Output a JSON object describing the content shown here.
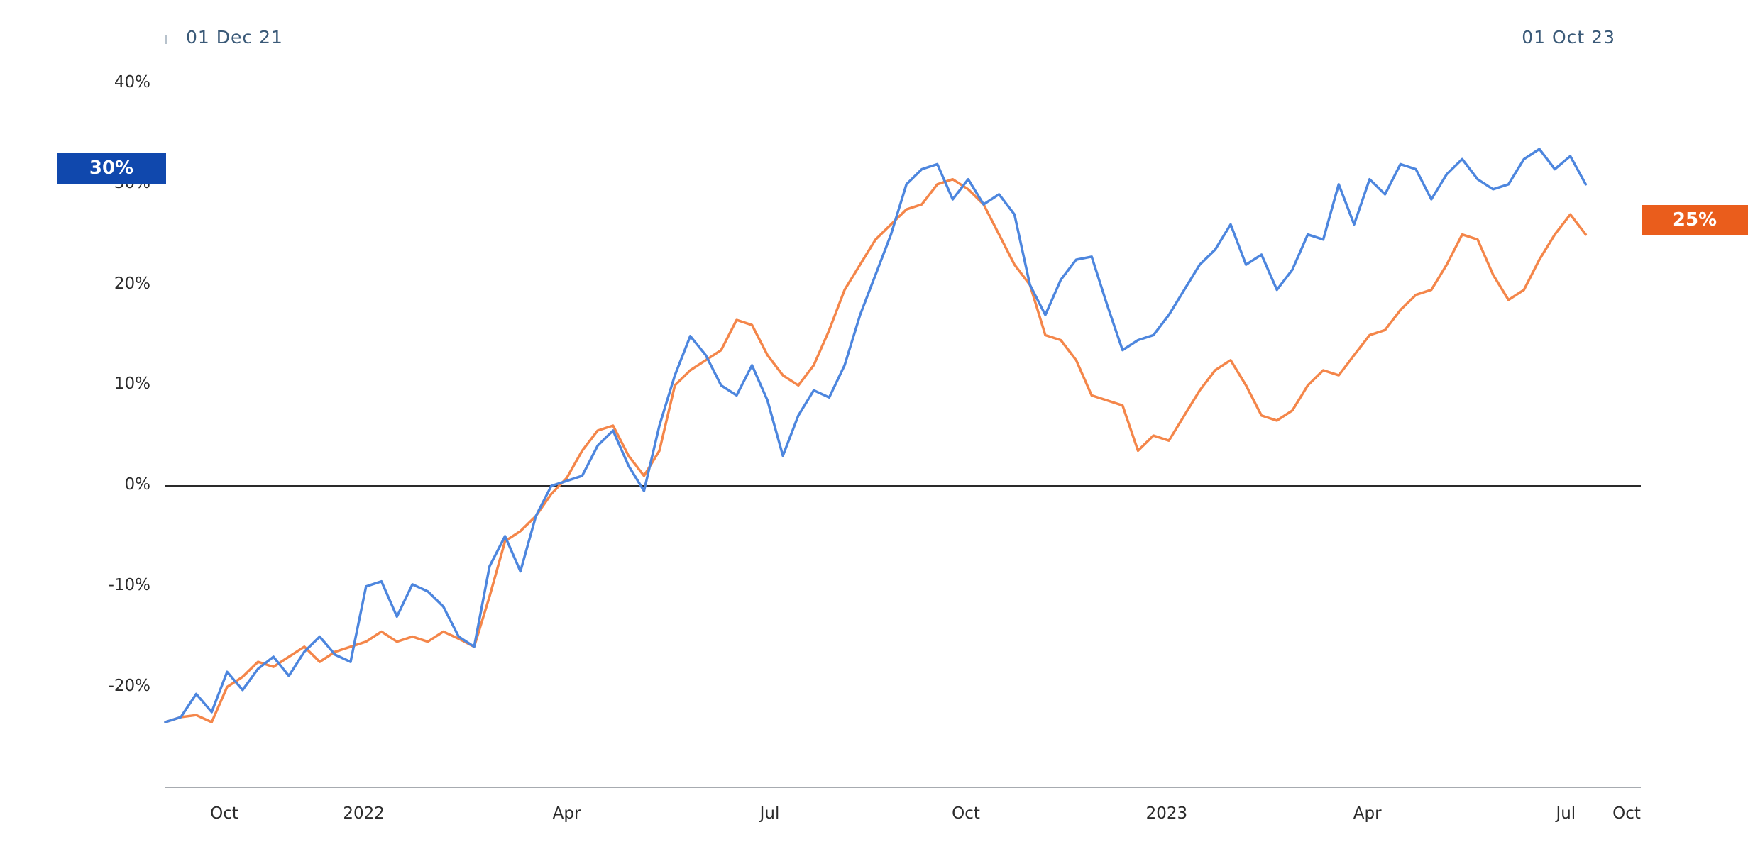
{
  "header": {
    "left_label": "01 Dec 21",
    "right_label": "01 Oct 23"
  },
  "colors": {
    "series_a": "#4d86de",
    "series_a_badge": "#1048ad",
    "series_b": "#f4864a",
    "series_b_badge": "#ea5d1c",
    "zero_line": "#2a2a2a",
    "axis_line": "#8a8f95"
  },
  "chart_data": {
    "type": "line",
    "title": "",
    "xlabel": "",
    "ylabel": "",
    "y_unit": "%",
    "ylim": [
      -30,
      40
    ],
    "grid": false,
    "zero_line": true,
    "yticks": [
      {
        "value": 40,
        "label": "40%"
      },
      {
        "value": 30,
        "label": "30%"
      },
      {
        "value": 20,
        "label": "20%"
      },
      {
        "value": 10,
        "label": "10%"
      },
      {
        "value": 0,
        "label": "0%"
      },
      {
        "value": -10,
        "label": "-10%"
      },
      {
        "value": -20,
        "label": "-20%"
      }
    ],
    "xlim": [
      "2021-12-01",
      "2023-10-01"
    ],
    "xticks": [
      {
        "date": "2021-12-01",
        "label": "Oct"
      },
      {
        "date": "2022-03-01",
        "label": "2022"
      },
      {
        "date": "2022-06-01",
        "label": "Apr"
      },
      {
        "date": "2022-09-01",
        "label": "Jul"
      },
      {
        "date": "2022-11-29",
        "label": "Oct"
      },
      {
        "date": "2023-02-28",
        "label": "2023"
      },
      {
        "date": "2023-05-30",
        "label": "Apr"
      },
      {
        "date": "2023-08-28",
        "label": "Jul"
      },
      {
        "date": "2023-10-01",
        "label": "Oct"
      }
    ],
    "series": [
      {
        "key": "a",
        "end_label": "30%",
        "points": [
          [
            "2021-12-01",
            -23.5
          ],
          [
            "2021-12-08",
            -23.0
          ],
          [
            "2021-12-15",
            -20.7
          ],
          [
            "2021-12-22",
            -22.5
          ],
          [
            "2021-12-29",
            -18.5
          ],
          [
            "2022-01-05",
            -20.3
          ],
          [
            "2022-01-12",
            -18.2
          ],
          [
            "2022-01-19",
            -17.0
          ],
          [
            "2022-01-26",
            -18.9
          ],
          [
            "2022-02-02",
            -16.5
          ],
          [
            "2022-02-09",
            -15.0
          ],
          [
            "2022-02-16",
            -16.8
          ],
          [
            "2022-02-23",
            -17.5
          ],
          [
            "2022-03-02",
            -10.0
          ],
          [
            "2022-03-09",
            -9.5
          ],
          [
            "2022-03-16",
            -13.0
          ],
          [
            "2022-03-23",
            -9.8
          ],
          [
            "2022-03-30",
            -10.5
          ],
          [
            "2022-04-06",
            -12.0
          ],
          [
            "2022-04-13",
            -15.0
          ],
          [
            "2022-04-20",
            -16.0
          ],
          [
            "2022-04-27",
            -8.0
          ],
          [
            "2022-05-04",
            -5.0
          ],
          [
            "2022-05-11",
            -8.5
          ],
          [
            "2022-05-18",
            -3.0
          ],
          [
            "2022-05-25",
            0.0
          ],
          [
            "2022-06-01",
            0.5
          ],
          [
            "2022-06-08",
            1.0
          ],
          [
            "2022-06-15",
            4.0
          ],
          [
            "2022-06-22",
            5.5
          ],
          [
            "2022-06-29",
            2.0
          ],
          [
            "2022-07-06",
            -0.5
          ],
          [
            "2022-07-13",
            6.0
          ],
          [
            "2022-07-20",
            11.0
          ],
          [
            "2022-07-27",
            14.9
          ],
          [
            "2022-08-03",
            13.0
          ],
          [
            "2022-08-10",
            10.0
          ],
          [
            "2022-08-17",
            9.0
          ],
          [
            "2022-08-24",
            12.0
          ],
          [
            "2022-08-31",
            8.5
          ],
          [
            "2022-09-07",
            3.0
          ],
          [
            "2022-09-14",
            7.0
          ],
          [
            "2022-09-21",
            9.5
          ],
          [
            "2022-09-28",
            8.8
          ],
          [
            "2022-10-05",
            12.0
          ],
          [
            "2022-10-12",
            17.0
          ],
          [
            "2022-10-19",
            21.0
          ],
          [
            "2022-10-26",
            25.0
          ],
          [
            "2022-11-02",
            30.0
          ],
          [
            "2022-11-09",
            31.5
          ],
          [
            "2022-11-16",
            32.0
          ],
          [
            "2022-11-23",
            28.5
          ],
          [
            "2022-11-30",
            30.5
          ],
          [
            "2022-12-07",
            28.0
          ],
          [
            "2022-12-14",
            29.0
          ],
          [
            "2022-12-21",
            27.0
          ],
          [
            "2022-12-28",
            20.0
          ],
          [
            "2023-01-04",
            17.0
          ],
          [
            "2023-01-11",
            20.5
          ],
          [
            "2023-01-18",
            22.5
          ],
          [
            "2023-01-25",
            22.8
          ],
          [
            "2023-02-01",
            18.0
          ],
          [
            "2023-02-08",
            13.5
          ],
          [
            "2023-02-15",
            14.5
          ],
          [
            "2023-02-22",
            15.0
          ],
          [
            "2023-03-01",
            17.0
          ],
          [
            "2023-03-08",
            19.5
          ],
          [
            "2023-03-15",
            22.0
          ],
          [
            "2023-03-22",
            23.5
          ],
          [
            "2023-03-29",
            26.0
          ],
          [
            "2023-04-05",
            22.0
          ],
          [
            "2023-04-12",
            23.0
          ],
          [
            "2023-04-19",
            19.5
          ],
          [
            "2023-04-26",
            21.5
          ],
          [
            "2023-05-03",
            25.0
          ],
          [
            "2023-05-10",
            24.5
          ],
          [
            "2023-05-17",
            30.0
          ],
          [
            "2023-05-24",
            26.0
          ],
          [
            "2023-05-31",
            30.5
          ],
          [
            "2023-06-07",
            29.0
          ],
          [
            "2023-06-14",
            32.0
          ],
          [
            "2023-06-21",
            31.5
          ],
          [
            "2023-06-28",
            28.5
          ],
          [
            "2023-07-05",
            31.0
          ],
          [
            "2023-07-12",
            32.5
          ],
          [
            "2023-07-19",
            30.5
          ],
          [
            "2023-07-26",
            29.5
          ],
          [
            "2023-08-02",
            30.0
          ],
          [
            "2023-08-09",
            32.5
          ],
          [
            "2023-08-16",
            33.5
          ],
          [
            "2023-08-23",
            31.5
          ],
          [
            "2023-08-30",
            32.8
          ],
          [
            "2023-09-06",
            30.0
          ]
        ]
      },
      {
        "key": "b",
        "end_label": "25%",
        "points": [
          [
            "2021-12-01",
            -23.5
          ],
          [
            "2021-12-08",
            -23.0
          ],
          [
            "2021-12-15",
            -22.8
          ],
          [
            "2021-12-22",
            -23.5
          ],
          [
            "2021-12-29",
            -20.0
          ],
          [
            "2022-01-05",
            -19.0
          ],
          [
            "2022-01-12",
            -17.5
          ],
          [
            "2022-01-19",
            -18.0
          ],
          [
            "2022-01-26",
            -17.0
          ],
          [
            "2022-02-02",
            -16.0
          ],
          [
            "2022-02-09",
            -17.5
          ],
          [
            "2022-02-16",
            -16.5
          ],
          [
            "2022-02-23",
            -16.0
          ],
          [
            "2022-03-02",
            -15.5
          ],
          [
            "2022-03-09",
            -14.5
          ],
          [
            "2022-03-16",
            -15.5
          ],
          [
            "2022-03-23",
            -15.0
          ],
          [
            "2022-03-30",
            -15.5
          ],
          [
            "2022-04-06",
            -14.5
          ],
          [
            "2022-04-13",
            -15.2
          ],
          [
            "2022-04-20",
            -16.0
          ],
          [
            "2022-04-27",
            -11.0
          ],
          [
            "2022-05-04",
            -5.5
          ],
          [
            "2022-05-11",
            -4.5
          ],
          [
            "2022-05-18",
            -3.0
          ],
          [
            "2022-05-25",
            -0.8
          ],
          [
            "2022-06-01",
            0.8
          ],
          [
            "2022-06-08",
            3.5
          ],
          [
            "2022-06-15",
            5.5
          ],
          [
            "2022-06-22",
            6.0
          ],
          [
            "2022-06-29",
            3.0
          ],
          [
            "2022-07-06",
            1.0
          ],
          [
            "2022-07-13",
            3.5
          ],
          [
            "2022-07-20",
            10.0
          ],
          [
            "2022-07-27",
            11.5
          ],
          [
            "2022-08-03",
            12.5
          ],
          [
            "2022-08-10",
            13.5
          ],
          [
            "2022-08-17",
            16.5
          ],
          [
            "2022-08-24",
            16.0
          ],
          [
            "2022-08-31",
            13.0
          ],
          [
            "2022-09-07",
            11.0
          ],
          [
            "2022-09-14",
            10.0
          ],
          [
            "2022-09-21",
            12.0
          ],
          [
            "2022-09-28",
            15.5
          ],
          [
            "2022-10-05",
            19.5
          ],
          [
            "2022-10-12",
            22.0
          ],
          [
            "2022-10-19",
            24.5
          ],
          [
            "2022-10-26",
            26.0
          ],
          [
            "2022-11-02",
            27.5
          ],
          [
            "2022-11-09",
            28.0
          ],
          [
            "2022-11-16",
            30.0
          ],
          [
            "2022-11-23",
            30.5
          ],
          [
            "2022-11-30",
            29.5
          ],
          [
            "2022-12-07",
            28.0
          ],
          [
            "2022-12-14",
            25.0
          ],
          [
            "2022-12-21",
            22.0
          ],
          [
            "2022-12-28",
            20.0
          ],
          [
            "2023-01-04",
            15.0
          ],
          [
            "2023-01-11",
            14.5
          ],
          [
            "2023-01-18",
            12.5
          ],
          [
            "2023-01-25",
            9.0
          ],
          [
            "2023-02-01",
            8.5
          ],
          [
            "2023-02-08",
            8.0
          ],
          [
            "2023-02-15",
            3.5
          ],
          [
            "2023-02-22",
            5.0
          ],
          [
            "2023-03-01",
            4.5
          ],
          [
            "2023-03-08",
            7.0
          ],
          [
            "2023-03-15",
            9.5
          ],
          [
            "2023-03-22",
            11.5
          ],
          [
            "2023-03-29",
            12.5
          ],
          [
            "2023-04-05",
            10.0
          ],
          [
            "2023-04-12",
            7.0
          ],
          [
            "2023-04-19",
            6.5
          ],
          [
            "2023-04-26",
            7.5
          ],
          [
            "2023-05-03",
            10.0
          ],
          [
            "2023-05-10",
            11.5
          ],
          [
            "2023-05-17",
            11.0
          ],
          [
            "2023-05-24",
            13.0
          ],
          [
            "2023-05-31",
            15.0
          ],
          [
            "2023-06-07",
            15.5
          ],
          [
            "2023-06-14",
            17.5
          ],
          [
            "2023-06-21",
            19.0
          ],
          [
            "2023-06-28",
            19.5
          ],
          [
            "2023-07-05",
            22.0
          ],
          [
            "2023-07-12",
            25.0
          ],
          [
            "2023-07-19",
            24.5
          ],
          [
            "2023-07-26",
            21.0
          ],
          [
            "2023-08-02",
            18.5
          ],
          [
            "2023-08-09",
            19.5
          ],
          [
            "2023-08-16",
            22.5
          ],
          [
            "2023-08-23",
            25.0
          ],
          [
            "2023-08-30",
            27.0
          ],
          [
            "2023-09-06",
            25.0
          ]
        ]
      }
    ]
  }
}
